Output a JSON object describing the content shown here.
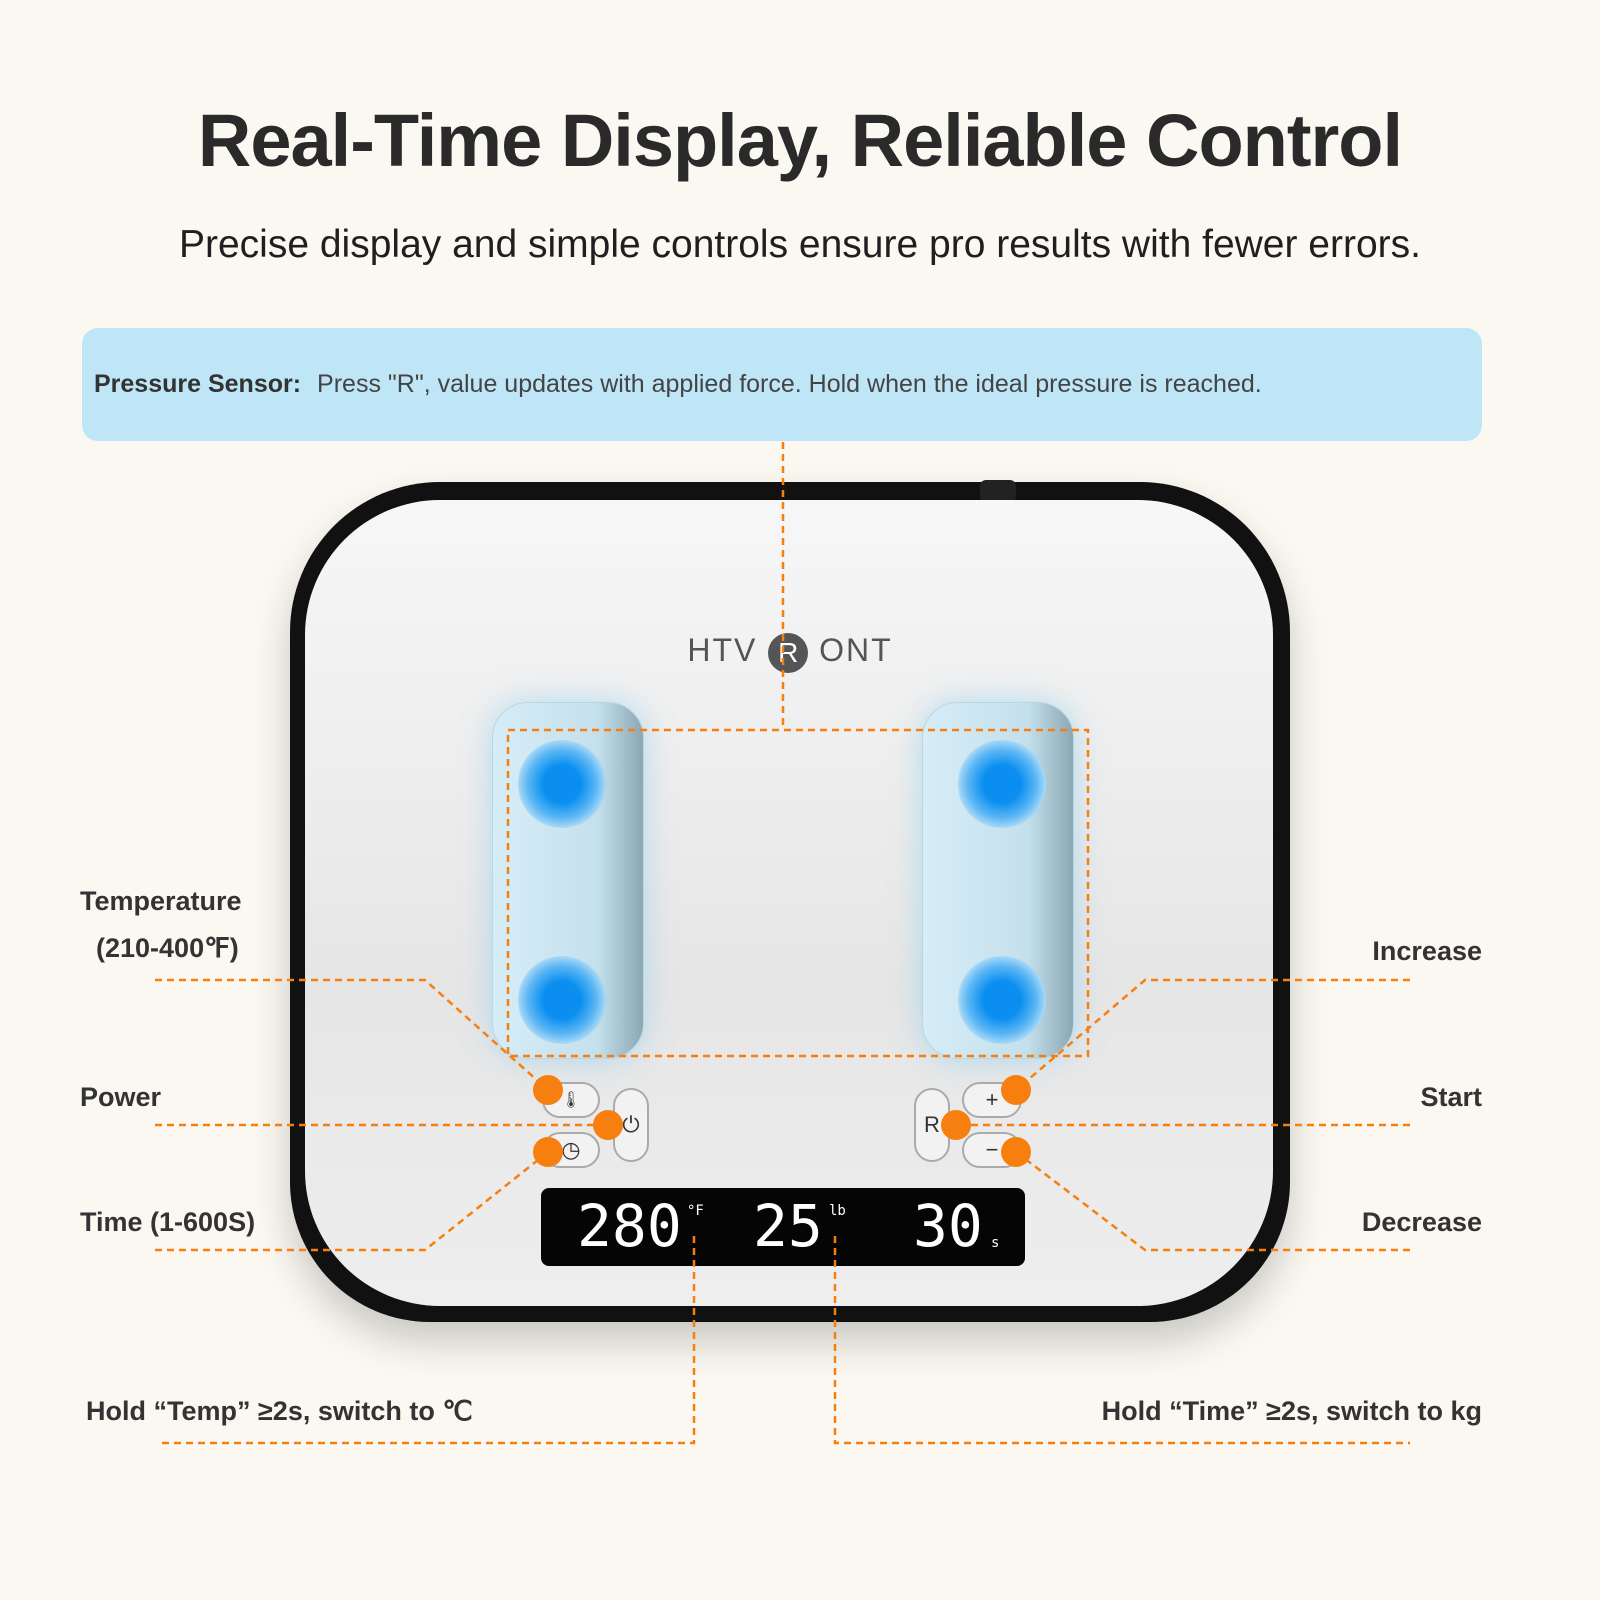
{
  "title": "Real-Time Display, Reliable Control",
  "subtitle": "Precise display and simple controls ensure pro results with fewer errors.",
  "banner": {
    "label": "Pressure Sensor:",
    "text": "Press \"R\", value updates with applied force. Hold when the ideal pressure is reached."
  },
  "logo": {
    "left": "HTV",
    "mark": "R",
    "right": "ONT"
  },
  "display": {
    "temperature": "280",
    "temp_unit": "°F",
    "pressure": "25",
    "pressure_unit": "lb",
    "time": "30",
    "time_unit": "s"
  },
  "buttons": {
    "plus": "+",
    "minus": "−",
    "r": "R",
    "power": "⏻",
    "temp": "🌡",
    "time": "◷"
  },
  "labels": {
    "temperature": "Temperature",
    "temperature_range": "(210-400℉)",
    "power": "Power",
    "time": "Time (1-600S)",
    "increase": "Increase",
    "start": "Start",
    "decrease": "Decrease",
    "hold_temp": "Hold “Temp” ≥2s, switch to ℃",
    "hold_time": "Hold “Time” ≥2s, switch to kg"
  },
  "colors": {
    "accent": "#f77f10",
    "banner": "#bfe6f6",
    "heat": "#0a8ff0"
  }
}
